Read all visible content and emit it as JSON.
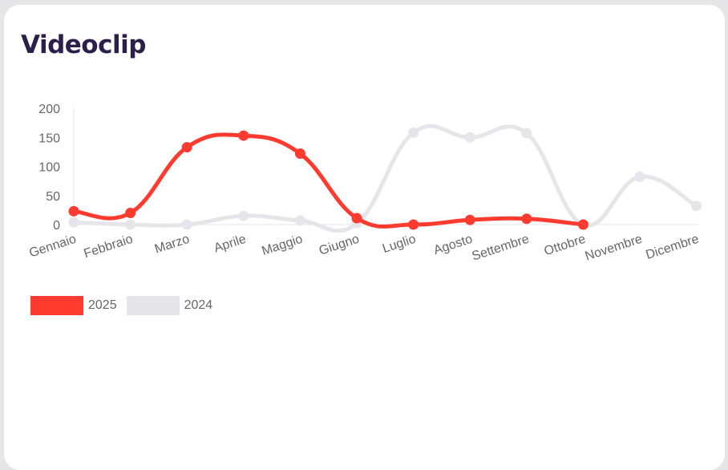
{
  "card": {
    "title": "Videoclip"
  },
  "chart_data": {
    "type": "line",
    "categories": [
      "Gennaio",
      "Febbraio",
      "Marzo",
      "Aprile",
      "Maggio",
      "Giugno",
      "Luglio",
      "Agosto",
      "Settembre",
      "Ottobre",
      "Novembre",
      "Dicembre"
    ],
    "series": [
      {
        "name": "2025",
        "color": "#ff3b30",
        "values": [
          23,
          20,
          133,
          153,
          122,
          11,
          0,
          8,
          10,
          0,
          null,
          null
        ]
      },
      {
        "name": "2024",
        "color": "#e6e6ea",
        "values": [
          4,
          0,
          0,
          15,
          7,
          2,
          158,
          150,
          157,
          0,
          82,
          32
        ]
      }
    ],
    "yticks": [
      "0",
      "50",
      "100",
      "150",
      "200"
    ],
    "ylim": [
      0,
      200
    ],
    "legend_position": "bottom-left",
    "grid": false
  }
}
